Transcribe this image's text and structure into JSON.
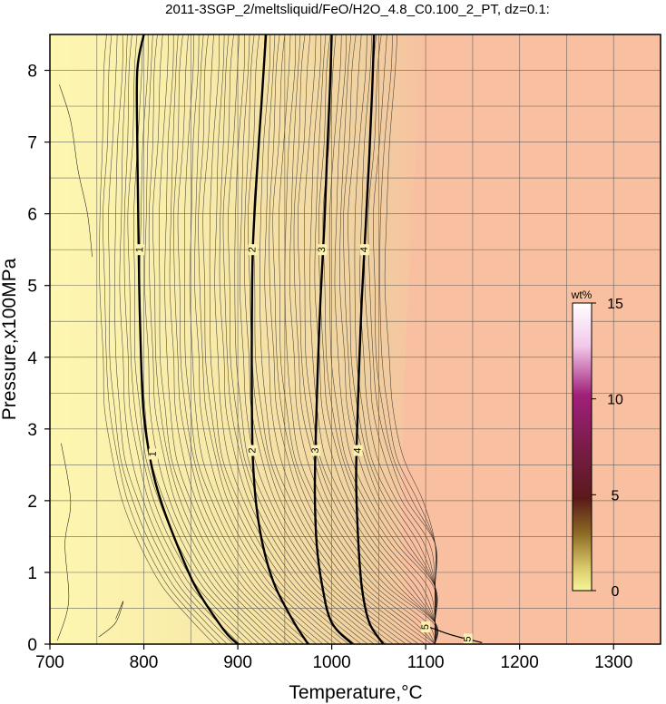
{
  "chart_data": {
    "type": "contour",
    "title": "2011-3SGP_2/meltsliquid/FeO/H2O_4.8_C0.100_2_PT, dz=0.1:",
    "xlabel": "Temperature,°C",
    "ylabel": "Pressure,x100MPa",
    "xlim": [
      700,
      1350
    ],
    "ylim": [
      0,
      8.5
    ],
    "x_ticks": [
      700,
      800,
      900,
      1000,
      1100,
      1200,
      1300
    ],
    "y_ticks": [
      0,
      1,
      2,
      3,
      4,
      5,
      6,
      7,
      8
    ],
    "grid": true,
    "colorbar": {
      "unit": "wt%",
      "ticks": [
        0,
        5,
        10,
        15
      ],
      "range": [
        0,
        15
      ],
      "placement": "right"
    },
    "contour_interval": 0.1,
    "labeled_contours": [
      {
        "level": "1",
        "points": [
          [
            900,
            0.0
          ],
          [
            885,
            0.2
          ],
          [
            855,
            0.8
          ],
          [
            835,
            1.4
          ],
          [
            818,
            2.0
          ],
          [
            808,
            2.5
          ],
          [
            800,
            3.2
          ],
          [
            797,
            4.0
          ],
          [
            795,
            5.0
          ],
          [
            794,
            6.0
          ],
          [
            793,
            7.0
          ],
          [
            793,
            8.0
          ],
          [
            800,
            8.5
          ]
        ]
      },
      {
        "level": "2",
        "points": [
          [
            975,
            0.0
          ],
          [
            960,
            0.3
          ],
          [
            940,
            0.8
          ],
          [
            928,
            1.3
          ],
          [
            920,
            1.9
          ],
          [
            916,
            2.6
          ],
          [
            915,
            3.4
          ],
          [
            915,
            4.5
          ],
          [
            916,
            5.5
          ],
          [
            920,
            6.5
          ],
          [
            925,
            7.5
          ],
          [
            930,
            8.5
          ]
        ]
      },
      {
        "level": "3",
        "points": [
          [
            1022,
            0.0
          ],
          [
            1000,
            0.3
          ],
          [
            990,
            0.8
          ],
          [
            984,
            1.4
          ],
          [
            982,
            2.1
          ],
          [
            983,
            2.9
          ],
          [
            985,
            3.8
          ],
          [
            988,
            4.8
          ],
          [
            992,
            5.8
          ],
          [
            995,
            6.8
          ],
          [
            998,
            7.7
          ],
          [
            1000,
            8.5
          ]
        ]
      },
      {
        "level": "4",
        "points": [
          [
            1055,
            0.0
          ],
          [
            1040,
            0.3
          ],
          [
            1032,
            0.8
          ],
          [
            1028,
            1.5
          ],
          [
            1026,
            2.3
          ],
          [
            1027,
            3.0
          ],
          [
            1029,
            3.8
          ],
          [
            1032,
            4.8
          ],
          [
            1036,
            5.8
          ],
          [
            1040,
            6.8
          ],
          [
            1043,
            7.7
          ],
          [
            1045,
            8.5
          ]
        ]
      },
      {
        "level": "5",
        "points": [
          [
            1095,
            0.25
          ],
          [
            1105,
            0.23
          ],
          [
            1120,
            0.16
          ],
          [
            1135,
            0.1
          ],
          [
            1148,
            0.06
          ],
          [
            1160,
            0.02
          ]
        ]
      }
    ],
    "contour_labels": [
      {
        "text": "1",
        "x": 796,
        "y": 5.5
      },
      {
        "text": "1",
        "x": 810,
        "y": 2.65
      },
      {
        "text": "2",
        "x": 916,
        "y": 5.5
      },
      {
        "text": "2",
        "x": 916,
        "y": 2.7
      },
      {
        "text": "3",
        "x": 990,
        "y": 5.5
      },
      {
        "text": "3",
        "x": 983,
        "y": 2.7
      },
      {
        "text": "4",
        "x": 1035,
        "y": 5.5
      },
      {
        "text": "4",
        "x": 1028,
        "y": 2.7
      },
      {
        "text": "5",
        "x": 1100,
        "y": 0.24
      },
      {
        "text": "5",
        "x": 1145,
        "y": 0.07
      }
    ],
    "field_colors": {
      "low": "#fdf7b0",
      "mid": "#f3d5a0",
      "high": "#f8c0a0"
    },
    "colorbar_colors": [
      "#f7f59a",
      "#8b6a24",
      "#5a1a1a",
      "#a0207a",
      "#f2c8ea",
      "#ffffff"
    ]
  }
}
